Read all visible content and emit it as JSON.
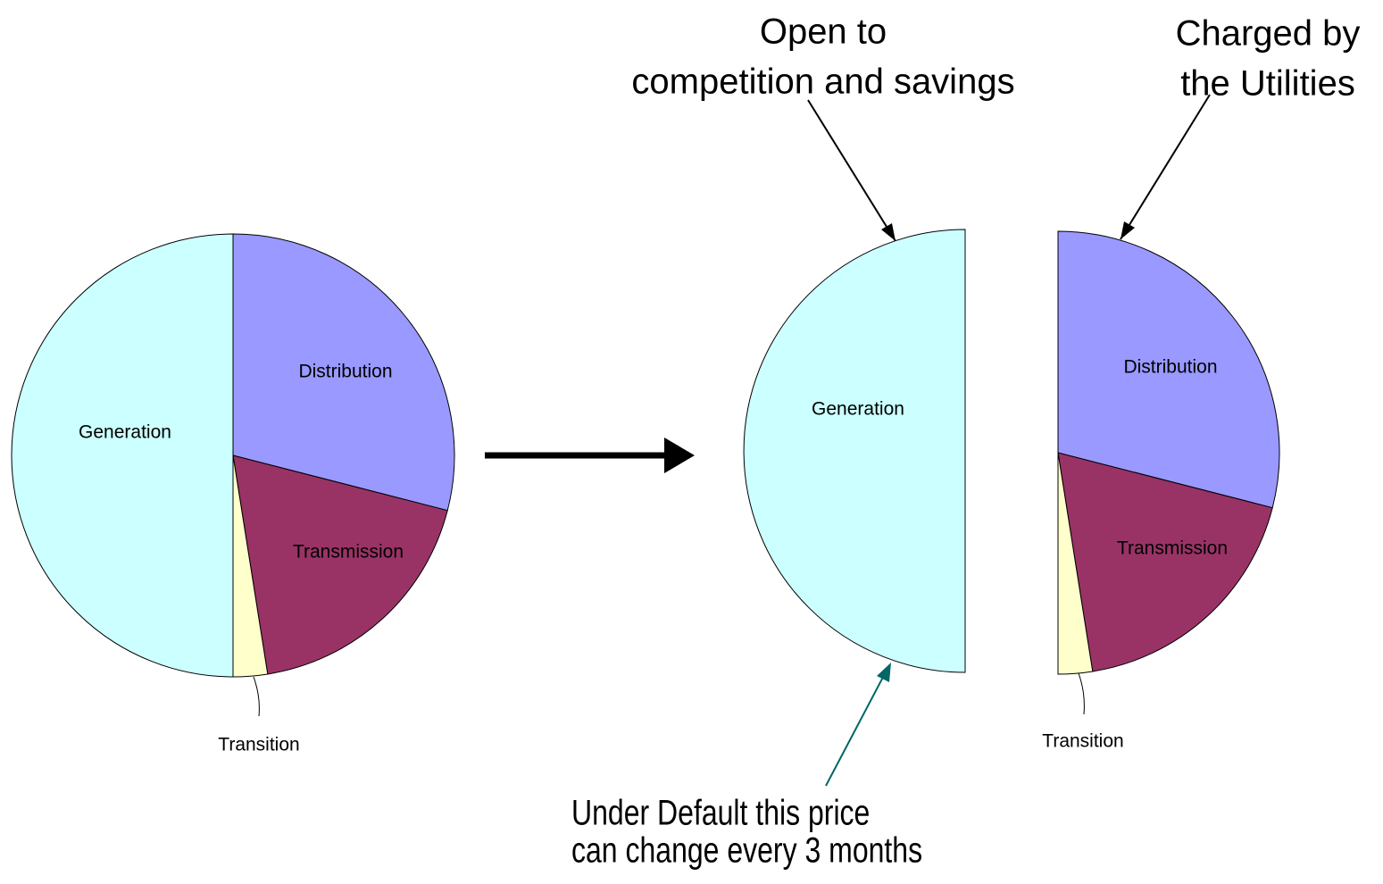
{
  "chart_data": {
    "type": "pie",
    "categories": [
      "Distribution",
      "Transmission",
      "Transition",
      "Generation"
    ],
    "values": [
      29,
      18.5,
      2.5,
      50
    ],
    "colors": [
      "#9999ff",
      "#993366",
      "#ffffcc",
      "#ccffff"
    ],
    "annotations": [
      {
        "lines": [
          "Open to",
          "competition and savings"
        ]
      },
      {
        "lines": [
          "Charged by",
          "the Utilities"
        ]
      },
      {
        "lines": [
          "Under Default this price",
          "can change every 3 months"
        ]
      }
    ]
  }
}
